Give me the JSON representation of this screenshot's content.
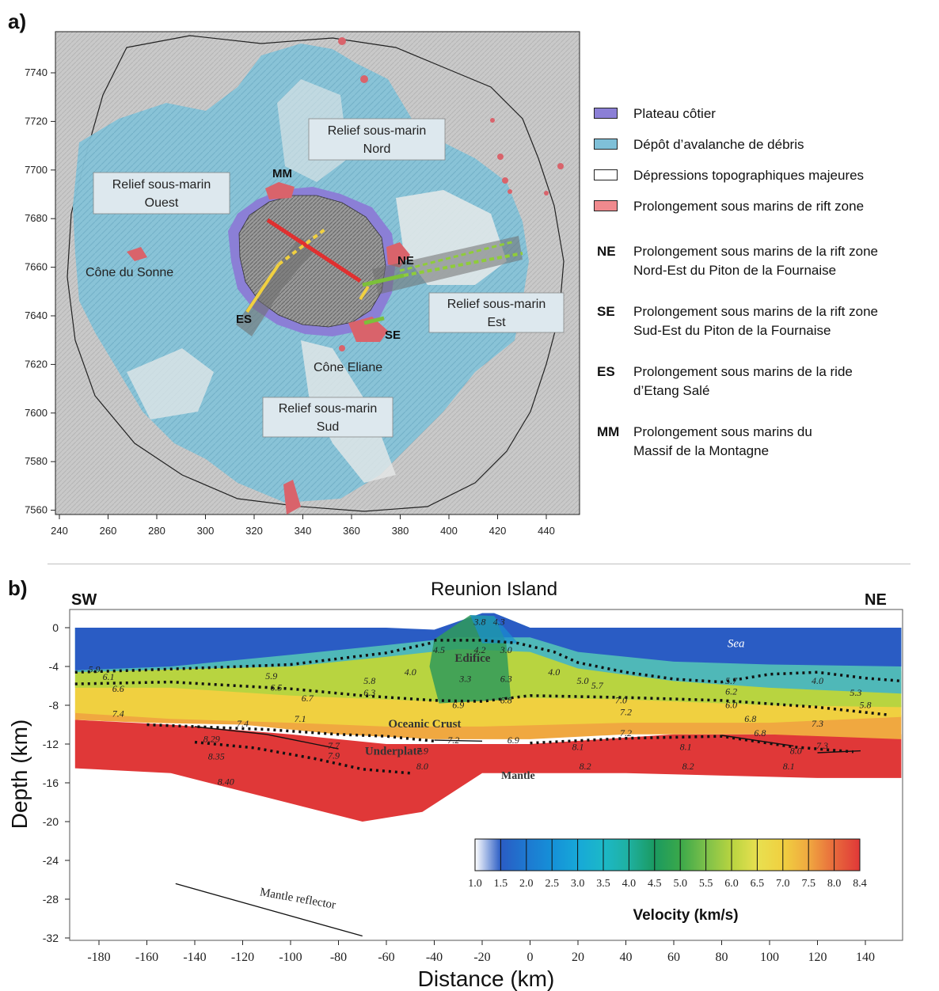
{
  "panel_a": {
    "label": "a)",
    "x_ticks": [
      "240",
      "260",
      "280",
      "300",
      "320",
      "340",
      "360",
      "380",
      "400",
      "420",
      "440"
    ],
    "y_ticks": [
      "7740",
      "7720",
      "7700",
      "7680",
      "7660",
      "7640",
      "7620",
      "7600",
      "7580",
      "7560"
    ],
    "regions": {
      "north": [
        "Relief sous-marin",
        "Nord"
      ],
      "west": [
        "Relief sous-marin",
        "Ouest"
      ],
      "east": [
        "Relief sous-marin",
        "Est"
      ],
      "south": [
        "Relief sous-marin",
        "Sud"
      ]
    },
    "labels": {
      "cone_sonne": "Cône du Sonne",
      "cone_eliane": "Cône Eliane",
      "mm": "MM",
      "ne": "NE",
      "se": "SE",
      "es": "ES"
    },
    "colors": {
      "plateau": "#8b7fd6",
      "debris": "#7fc0d8",
      "depression": "#ffffff",
      "rift": "#e07a80",
      "background": "#c9c9c9"
    }
  },
  "legend": {
    "swatches": [
      {
        "color": "#8b7fd6",
        "text": "Plateau côtier"
      },
      {
        "color": "#7fc0d8",
        "text": "Dépôt d’avalanche de débris"
      },
      {
        "color": "#ffffff",
        "text": "Dépressions topographiques majeures"
      },
      {
        "color": "#f08a8e",
        "text": "Prolongement sous marins de rift zone"
      }
    ],
    "abbreviations": [
      {
        "abbr": "NE",
        "text": "Prolongement sous marins de la rift zone\nNord-Est du Piton de la Fournaise"
      },
      {
        "abbr": "SE",
        "text": "Prolongement sous marins de la rift zone\nSud-Est du Piton de la Fournaise"
      },
      {
        "abbr": "ES",
        "text": "Prolongement sous marins de la ride\nd’Etang Salé"
      },
      {
        "abbr": "MM",
        "text": "Prolongement sous marins du\nMassif de la Montagne"
      }
    ]
  },
  "panel_b": {
    "label": "b)",
    "title": "Reunion Island",
    "left_end": "SW",
    "right_end": "NE",
    "xlabel": "Distance (km)",
    "ylabel": "Depth (km)",
    "x_ticks": [
      "-180",
      "-160",
      "-140",
      "-120",
      "-100",
      "-80",
      "-60",
      "-40",
      "-20",
      "0",
      "20",
      "40",
      "60",
      "80",
      "100",
      "120",
      "140"
    ],
    "y_ticks": [
      "0",
      "-4",
      "-8",
      "-12",
      "-16",
      "-20",
      "-24",
      "-28",
      "-32"
    ],
    "layer_labels": {
      "sea": "Sea",
      "edifice": "Edifice",
      "crust": "Oceanic Crust",
      "underplate": "Underplate",
      "mantle": "Mantle",
      "reflector": "Mantle reflector"
    },
    "colorbar": {
      "title": "Velocity (km/s)",
      "ticks": [
        "1.0",
        "1.5",
        "2.0",
        "2.5",
        "3.0",
        "3.5",
        "4.0",
        "4.5",
        "5.0",
        "5.5",
        "6.0",
        "6.5",
        "7.0",
        "7.5",
        "8.0",
        "8.4"
      ],
      "colors": [
        "#ffffff",
        "#2a5cc4",
        "#1e78d0",
        "#1590d8",
        "#17a8d8",
        "#1cb8c8",
        "#1fb0a0",
        "#1a9a60",
        "#3aa84a",
        "#7cc04a",
        "#b8d440",
        "#e8e050",
        "#f0d040",
        "#f0a840",
        "#e86a3c",
        "#e03838"
      ]
    },
    "velocity_values": [
      {
        "t": "3.8",
        "x": -21,
        "d": 0.3
      },
      {
        "t": "4.3",
        "x": -13,
        "d": 0.3
      },
      {
        "t": "4.5",
        "x": -38,
        "d": -2.6
      },
      {
        "t": "4.2",
        "x": -21,
        "d": -2.6
      },
      {
        "t": "3.0",
        "x": -10,
        "d": -2.6
      },
      {
        "t": "5.9",
        "x": -182,
        "d": -4.6
      },
      {
        "t": "6.1",
        "x": -176,
        "d": -5.4
      },
      {
        "t": "6.6",
        "x": -172,
        "d": -6.6
      },
      {
        "t": "4.0",
        "x": -50,
        "d": -4.9
      },
      {
        "t": "3.3",
        "x": -27,
        "d": -5.6
      },
      {
        "t": "6.3",
        "x": -10,
        "d": -5.6
      },
      {
        "t": "4.0",
        "x": 10,
        "d": -4.9
      },
      {
        "t": "5.9",
        "x": -108,
        "d": -5.3
      },
      {
        "t": "6.5",
        "x": -106,
        "d": -6.5
      },
      {
        "t": "5.8",
        "x": -67,
        "d": -5.8
      },
      {
        "t": "6.3",
        "x": -67,
        "d": -7.0
      },
      {
        "t": "6.7",
        "x": -93,
        "d": -7.6
      },
      {
        "t": "6.9",
        "x": -30,
        "d": -8.3
      },
      {
        "t": "6.8",
        "x": -10,
        "d": -7.8
      },
      {
        "t": "5.0",
        "x": 22,
        "d": -5.8
      },
      {
        "t": "5.7",
        "x": 28,
        "d": -6.3
      },
      {
        "t": "7.0",
        "x": 38,
        "d": -7.8
      },
      {
        "t": "7.2",
        "x": 40,
        "d": -9.0
      },
      {
        "t": "5.7",
        "x": 84,
        "d": -5.8
      },
      {
        "t": "6.2",
        "x": 84,
        "d": -6.9
      },
      {
        "t": "6.0",
        "x": 84,
        "d": -8.3
      },
      {
        "t": "4.0",
        "x": 120,
        "d": -5.8
      },
      {
        "t": "5.3",
        "x": 136,
        "d": -7.0
      },
      {
        "t": "5.8",
        "x": 140,
        "d": -8.3
      },
      {
        "t": "7.4",
        "x": -172,
        "d": -9.2
      },
      {
        "t": "7.4",
        "x": -120,
        "d": -10.2
      },
      {
        "t": "7.1",
        "x": -96,
        "d": -9.7
      },
      {
        "t": "6.8",
        "x": 92,
        "d": -9.7
      },
      {
        "t": "7.3",
        "x": 120,
        "d": -10.2
      },
      {
        "t": "7.2",
        "x": -32,
        "d": -11.9
      },
      {
        "t": "6.9",
        "x": -7,
        "d": -11.9
      },
      {
        "t": "7.2",
        "x": 40,
        "d": -11.2
      },
      {
        "t": "6.8",
        "x": 96,
        "d": -11.2
      },
      {
        "t": "7.7",
        "x": -82,
        "d": -12.5
      },
      {
        "t": "7.9",
        "x": -82,
        "d": -13.5
      },
      {
        "t": "7.9",
        "x": -45,
        "d": -13.0
      },
      {
        "t": "8.0",
        "x": -45,
        "d": -14.6
      },
      {
        "t": "8.1",
        "x": 20,
        "d": -12.6
      },
      {
        "t": "8.1",
        "x": 65,
        "d": -12.6
      },
      {
        "t": "8.0",
        "x": 111,
        "d": -13.0
      },
      {
        "t": "7.3",
        "x": 122,
        "d": -12.5
      },
      {
        "t": "8.29",
        "x": -133,
        "d": -11.8
      },
      {
        "t": "8.35",
        "x": -131,
        "d": -13.6
      },
      {
        "t": "8.40",
        "x": -127,
        "d": -16.2
      },
      {
        "t": "8.2",
        "x": 23,
        "d": -14.6
      },
      {
        "t": "8.2",
        "x": 66,
        "d": -14.6
      },
      {
        "t": "8.1",
        "x": 108,
        "d": -14.6
      }
    ]
  }
}
